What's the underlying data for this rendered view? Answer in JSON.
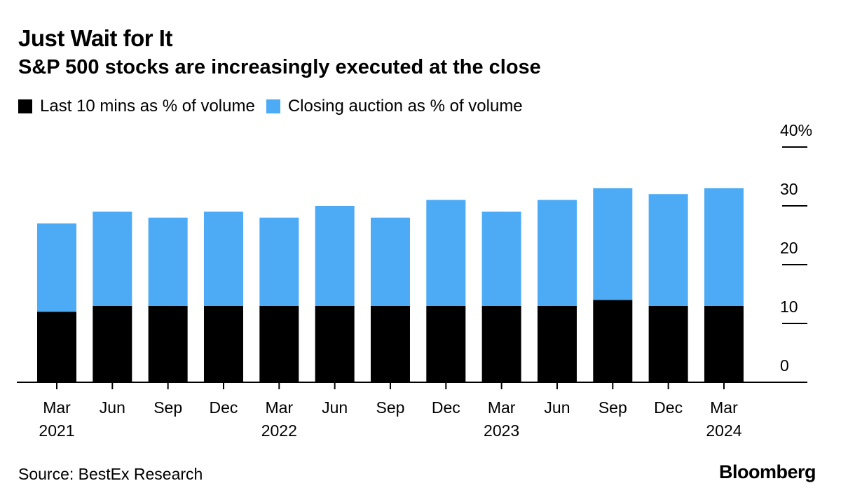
{
  "header": {
    "title": "Just Wait for It",
    "subtitle": "S&P 500 stocks are increasingly executed at the close"
  },
  "footer": {
    "source": "Source: BestEx Research",
    "brand": "Bloomberg"
  },
  "colors": {
    "last10": "#000000",
    "auction": "#4dabf5"
  },
  "chart_data": {
    "type": "bar",
    "stacked": true,
    "categories": [
      [
        "Mar",
        "2021"
      ],
      [
        "Jun",
        ""
      ],
      [
        "Sep",
        ""
      ],
      [
        "Dec",
        ""
      ],
      [
        "Mar",
        "2022"
      ],
      [
        "Jun",
        ""
      ],
      [
        "Sep",
        ""
      ],
      [
        "Dec",
        ""
      ],
      [
        "Mar",
        "2023"
      ],
      [
        "Jun",
        ""
      ],
      [
        "Sep",
        ""
      ],
      [
        "Dec",
        ""
      ],
      [
        "Mar",
        "2024"
      ]
    ],
    "series": [
      {
        "name": "Last 10 mins as % of volume",
        "color": "#000000",
        "values": [
          12,
          13,
          13,
          13,
          13,
          13,
          13,
          13,
          13,
          13,
          14,
          13,
          13
        ]
      },
      {
        "name": "Closing auction as % of volume",
        "color": "#4dabf5",
        "values": [
          15,
          16,
          15,
          16,
          15,
          17,
          15,
          18,
          16,
          18,
          19,
          19,
          20
        ]
      }
    ],
    "ylim": [
      0,
      40
    ],
    "yticks": [
      0,
      10,
      20,
      30,
      40
    ],
    "ytick_labels": [
      "0",
      "10",
      "20",
      "30",
      "40%"
    ],
    "yaxis_side": "right",
    "legend_position": "top-left",
    "grid": false
  }
}
